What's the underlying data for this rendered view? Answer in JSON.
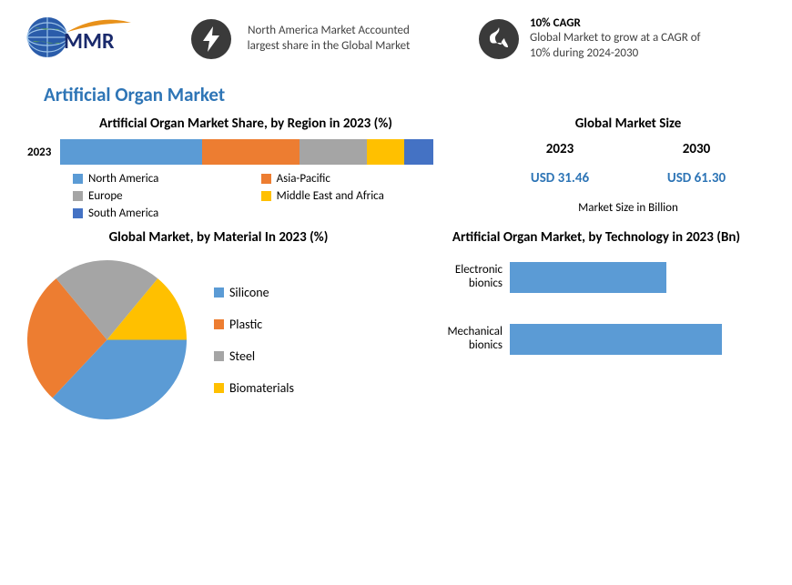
{
  "colors": {
    "blue": "#5b9bd5",
    "orange": "#ed7d31",
    "gray": "#a5a5a5",
    "yellow": "#ffc000",
    "darkblue": "#4472c4",
    "text_blue": "#2e75b6",
    "logo_navy": "#1a2a6c"
  },
  "header": {
    "logo_text": "MMR",
    "block1": {
      "text": "North America Market Accounted largest share in the Global Market"
    },
    "block2": {
      "title": "10% CAGR",
      "text": "Global Market to grow at a CAGR of 10% during 2024-2030"
    }
  },
  "main_title": "Artificial Organ Market",
  "region_share": {
    "title": "Artificial Organ Market Share, by Region in 2023 (%)",
    "year_label": "2023",
    "segments": [
      {
        "name": "North America",
        "pct": 38,
        "color": "#5b9bd5"
      },
      {
        "name": "Asia-Pacific",
        "pct": 26,
        "color": "#ed7d31"
      },
      {
        "name": "Europe",
        "pct": 18,
        "color": "#a5a5a5"
      },
      {
        "name": "Middle East and Africa",
        "pct": 10,
        "color": "#ffc000"
      },
      {
        "name": "South America",
        "pct": 8,
        "color": "#4472c4"
      }
    ],
    "legend_cols": 2
  },
  "market_size": {
    "title": "Global Market Size",
    "years": [
      "2023",
      "2030"
    ],
    "values": [
      "USD 31.46",
      "USD 61.30"
    ],
    "value_color": "#2e75b6",
    "footer": "Market Size in Billion"
  },
  "material_pie": {
    "title": "Global Market, by Material In 2023 (%)",
    "slices": [
      {
        "name": "Silicone",
        "pct": 37,
        "color": "#5b9bd5"
      },
      {
        "name": "Plastic",
        "pct": 27,
        "color": "#ed7d31"
      },
      {
        "name": "Steel",
        "pct": 22,
        "color": "#a5a5a5"
      },
      {
        "name": "Biomaterials",
        "pct": 14,
        "color": "#ffc000"
      }
    ],
    "start_angle_deg": 0
  },
  "technology_bar": {
    "title": "Artificial Organ Market, by Technology in 2023 (Bn)",
    "x_max": 22,
    "bar_color": "#5b9bd5",
    "bars": [
      {
        "label": "Electronic bionics",
        "value": 14
      },
      {
        "label": "Mechanical bionics",
        "value": 19
      }
    ]
  }
}
